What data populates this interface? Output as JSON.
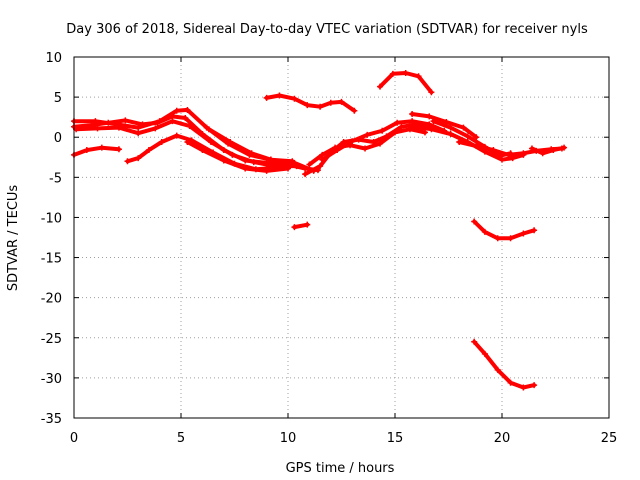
{
  "chart_data": {
    "type": "scatter",
    "title": "Day 306 of 2018, Sidereal Day-to-day VTEC variation (SDTVAR) for receiver nyls",
    "xlabel": "GPS time / hours",
    "ylabel": "SDTVAR / TECUs",
    "xlim": [
      0,
      25
    ],
    "ylim": [
      -35,
      10
    ],
    "xticks": [
      "0",
      "5",
      "10",
      "15",
      "20",
      "25"
    ],
    "yticks": [
      "10",
      "5",
      "0",
      "-5",
      "-10",
      "-15",
      "-20",
      "-25",
      "-30",
      "-35"
    ],
    "xtick_values": [
      0,
      5,
      10,
      15,
      20,
      25
    ],
    "ytick_values": [
      10,
      5,
      0,
      -5,
      -10,
      -15,
      -20,
      -25,
      -30,
      -35
    ],
    "grid": true,
    "marker_color": "#ff0000",
    "series": [
      {
        "name": "arc-1",
        "points": [
          [
            0,
            1.3
          ],
          [
            0.8,
            1.5
          ],
          [
            1.6,
            1.8
          ],
          [
            2.4,
            2.1
          ],
          [
            3.2,
            1.6
          ],
          [
            3.9,
            1.8
          ],
          [
            4.6,
            2.6
          ],
          [
            5.2,
            2.4
          ],
          [
            6.0,
            0.4
          ],
          [
            7.0,
            -1.6
          ],
          [
            8.0,
            -2.9
          ],
          [
            9.0,
            -3.2
          ],
          [
            10.0,
            -3.4
          ],
          [
            10.8,
            -3.9
          ],
          [
            11.4,
            -4.1
          ]
        ]
      },
      {
        "name": "arc-2",
        "points": [
          [
            0,
            2.0
          ],
          [
            1.0,
            2.0
          ],
          [
            2.0,
            1.6
          ],
          [
            3.0,
            1.2
          ],
          [
            4.0,
            2.0
          ],
          [
            4.8,
            3.3
          ],
          [
            5.3,
            3.4
          ],
          [
            6.2,
            1.2
          ],
          [
            7.2,
            -0.8
          ],
          [
            8.2,
            -2.2
          ],
          [
            9.2,
            -2.8
          ],
          [
            10.3,
            -3.2
          ],
          [
            11.2,
            -4.2
          ]
        ]
      },
      {
        "name": "arc-3",
        "points": [
          [
            0.1,
            1.0
          ],
          [
            1.1,
            1.1
          ],
          [
            2.1,
            1.2
          ],
          [
            3.0,
            0.5
          ],
          [
            3.8,
            1.1
          ],
          [
            4.6,
            2.0
          ],
          [
            5.4,
            1.4
          ],
          [
            6.4,
            -0.6
          ],
          [
            7.4,
            -2.2
          ],
          [
            8.4,
            -3.1
          ],
          [
            9.4,
            -3.6
          ],
          [
            10.4,
            -3.6
          ]
        ]
      },
      {
        "name": "arc-4",
        "points": [
          [
            0,
            -2.2
          ],
          [
            0.6,
            -1.6
          ],
          [
            1.3,
            -1.3
          ],
          [
            2.1,
            -1.5
          ]
        ]
      },
      {
        "name": "arc-5",
        "points": [
          [
            2.5,
            -3.0
          ],
          [
            3.0,
            -2.6
          ],
          [
            3.5,
            -1.6
          ],
          [
            4.1,
            -0.6
          ],
          [
            4.8,
            0.2
          ],
          [
            5.5,
            -0.4
          ],
          [
            6.5,
            -1.9
          ],
          [
            7.5,
            -3.3
          ],
          [
            8.5,
            -4.0
          ],
          [
            9.5,
            -3.8
          ]
        ]
      },
      {
        "name": "arc-6",
        "points": [
          [
            5.3,
            -0.6
          ],
          [
            6.0,
            -1.6
          ],
          [
            7.0,
            -2.9
          ],
          [
            8.0,
            -3.9
          ],
          [
            9.0,
            -4.2
          ],
          [
            10.0,
            -3.9
          ]
        ]
      },
      {
        "name": "arc-7",
        "points": [
          [
            6.3,
            1.0
          ],
          [
            7.3,
            -0.6
          ],
          [
            8.3,
            -2.0
          ],
          [
            9.2,
            -2.8
          ],
          [
            10.2,
            -3.0
          ]
        ]
      },
      {
        "name": "arc-8",
        "points": [
          [
            9.0,
            4.9
          ],
          [
            9.6,
            5.2
          ],
          [
            10.3,
            4.8
          ],
          [
            10.9,
            4.0
          ],
          [
            11.5,
            3.8
          ],
          [
            12.0,
            4.3
          ],
          [
            12.5,
            4.4
          ],
          [
            13.1,
            3.3
          ]
        ]
      },
      {
        "name": "arc-9",
        "points": [
          [
            10.3,
            -11.2
          ],
          [
            10.9,
            -10.9
          ]
        ]
      },
      {
        "name": "arc-10",
        "points": [
          [
            10.8,
            -4.6
          ],
          [
            11.5,
            -3.6
          ],
          [
            12.0,
            -1.9
          ],
          [
            12.6,
            -0.6
          ],
          [
            13.3,
            -0.3
          ],
          [
            14.0,
            -0.6
          ],
          [
            14.6,
            0.1
          ],
          [
            15.3,
            1.3
          ],
          [
            16.0,
            1.6
          ],
          [
            16.7,
            1.3
          ]
        ]
      },
      {
        "name": "arc-11",
        "points": [
          [
            11.0,
            -3.4
          ],
          [
            11.6,
            -2.2
          ],
          [
            12.2,
            -1.3
          ],
          [
            12.9,
            -1.0
          ],
          [
            13.6,
            -1.4
          ],
          [
            14.3,
            -0.8
          ],
          [
            15.0,
            0.6
          ],
          [
            15.7,
            1.0
          ],
          [
            16.4,
            0.6
          ]
        ]
      },
      {
        "name": "arc-12",
        "points": [
          [
            11.6,
            -2.8
          ],
          [
            12.3,
            -1.6
          ],
          [
            13.0,
            -0.5
          ],
          [
            13.7,
            0.3
          ],
          [
            14.4,
            0.8
          ],
          [
            15.1,
            1.8
          ],
          [
            15.8,
            2.0
          ],
          [
            16.6,
            1.6
          ],
          [
            17.3,
            0.8
          ]
        ]
      },
      {
        "name": "arc-13",
        "points": [
          [
            14.3,
            6.3
          ],
          [
            14.9,
            7.9
          ],
          [
            15.5,
            8.0
          ],
          [
            16.1,
            7.6
          ],
          [
            16.7,
            5.6
          ]
        ]
      },
      {
        "name": "arc-14",
        "points": [
          [
            15.8,
            2.9
          ],
          [
            16.6,
            2.6
          ],
          [
            17.4,
            1.9
          ],
          [
            18.2,
            1.2
          ],
          [
            18.8,
            0.0
          ]
        ]
      },
      {
        "name": "arc-15",
        "points": [
          [
            15.8,
            1.3
          ],
          [
            16.7,
            1.0
          ],
          [
            17.6,
            0.4
          ],
          [
            18.4,
            -0.6
          ],
          [
            19.2,
            -1.8
          ],
          [
            20.0,
            -2.8
          ],
          [
            20.5,
            -2.6
          ],
          [
            21.0,
            -2.2
          ]
        ]
      },
      {
        "name": "arc-16",
        "points": [
          [
            16.8,
            2.0
          ],
          [
            17.6,
            1.2
          ],
          [
            18.4,
            0.1
          ],
          [
            19.2,
            -1.2
          ],
          [
            19.9,
            -2.3
          ],
          [
            20.4,
            -2.0
          ]
        ]
      },
      {
        "name": "arc-17",
        "points": [
          [
            18.0,
            -0.6
          ],
          [
            18.8,
            -1.1
          ],
          [
            19.6,
            -1.6
          ],
          [
            20.3,
            -2.2
          ],
          [
            21.0,
            -2.0
          ],
          [
            21.6,
            -1.7
          ],
          [
            22.3,
            -1.5
          ],
          [
            22.8,
            -1.4
          ]
        ]
      },
      {
        "name": "arc-18",
        "points": [
          [
            21.4,
            -1.4
          ],
          [
            21.9,
            -2.0
          ],
          [
            22.4,
            -1.6
          ],
          [
            22.9,
            -1.3
          ]
        ]
      },
      {
        "name": "arc-19",
        "points": [
          [
            18.7,
            -10.5
          ],
          [
            19.2,
            -11.8
          ],
          [
            19.8,
            -12.6
          ],
          [
            20.4,
            -12.6
          ],
          [
            21.0,
            -12.0
          ],
          [
            21.5,
            -11.6
          ]
        ]
      },
      {
        "name": "arc-20",
        "points": [
          [
            18.7,
            -25.5
          ],
          [
            19.2,
            -27.0
          ],
          [
            19.8,
            -29.0
          ],
          [
            20.4,
            -30.6
          ],
          [
            21.0,
            -31.2
          ],
          [
            21.5,
            -30.9
          ]
        ]
      }
    ]
  }
}
